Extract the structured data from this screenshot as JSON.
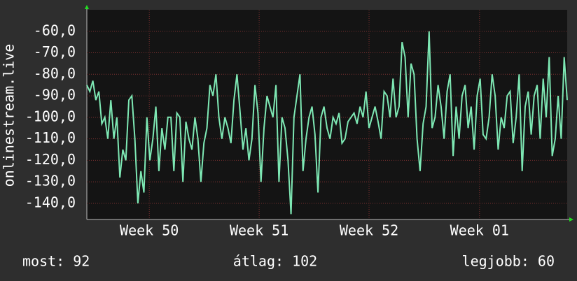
{
  "chart_data": {
    "type": "line",
    "y_label": "onlinestream.live",
    "series": [
      {
        "name": "onlinestream.live",
        "color": "#7ee8b4",
        "values": [
          -85,
          -88,
          -83,
          -92,
          -88,
          -103,
          -100,
          -110,
          -92,
          -110,
          -100,
          -128,
          -115,
          -120,
          -92,
          -90,
          -110,
          -140,
          -125,
          -135,
          -100,
          -120,
          -110,
          -95,
          -125,
          -105,
          -115,
          -100,
          -100,
          -125,
          -98,
          -100,
          -130,
          -102,
          -110,
          -115,
          -100,
          -110,
          -130,
          -112,
          -105,
          -85,
          -90,
          -80,
          -100,
          -110,
          -100,
          -105,
          -112,
          -92,
          -80,
          -97,
          -115,
          -105,
          -120,
          -110,
          -85,
          -98,
          -130,
          -105,
          -90,
          -95,
          -100,
          -85,
          -130,
          -100,
          -105,
          -120,
          -145,
          -100,
          -90,
          -80,
          -125,
          -110,
          -100,
          -95,
          -108,
          -135,
          -100,
          -95,
          -105,
          -110,
          -100,
          -103,
          -98,
          -112,
          -110,
          -102,
          -100,
          -98,
          -103,
          -95,
          -100,
          -88,
          -105,
          -100,
          -95,
          -102,
          -110,
          -88,
          -90,
          -100,
          -82,
          -100,
          -95,
          -65,
          -72,
          -100,
          -75,
          -80,
          -110,
          -125,
          -103,
          -95,
          -60,
          -105,
          -100,
          -85,
          -95,
          -110,
          -88,
          -80,
          -118,
          -95,
          -110,
          -90,
          -85,
          -105,
          -95,
          -115,
          -90,
          -82,
          -108,
          -110,
          -100,
          -80,
          -90,
          -115,
          -100,
          -105,
          -90,
          -88,
          -112,
          -100,
          -80,
          -125,
          -95,
          -88,
          -108,
          -90,
          -85,
          -110,
          -82,
          -100,
          -72,
          -118,
          -110,
          -90,
          -110,
          -72,
          -92
        ]
      }
    ],
    "xlim": [
      0,
      160
    ],
    "xticks": [
      {
        "value": 20.8,
        "label": "Week 50"
      },
      {
        "value": 57.4,
        "label": "Week 51"
      },
      {
        "value": 94.0,
        "label": "Week 52"
      },
      {
        "value": 130.8,
        "label": "Week 01"
      }
    ],
    "ylim": [
      -147.5,
      -50
    ],
    "yticks": [
      {
        "value": -60,
        "label": "-60,0"
      },
      {
        "value": -70,
        "label": "-70,0"
      },
      {
        "value": -80,
        "label": "-80,0"
      },
      {
        "value": -90,
        "label": "-90,0"
      },
      {
        "value": -100,
        "label": "-100,0"
      },
      {
        "value": -110,
        "label": "-110,0"
      },
      {
        "value": -120,
        "label": "-120,0"
      },
      {
        "value": -130,
        "label": "-130,0"
      },
      {
        "value": -140,
        "label": "-140,0"
      }
    ],
    "grid": true,
    "stats": [
      "most: 92",
      "átlag: 102",
      "legjobb: 60"
    ]
  }
}
